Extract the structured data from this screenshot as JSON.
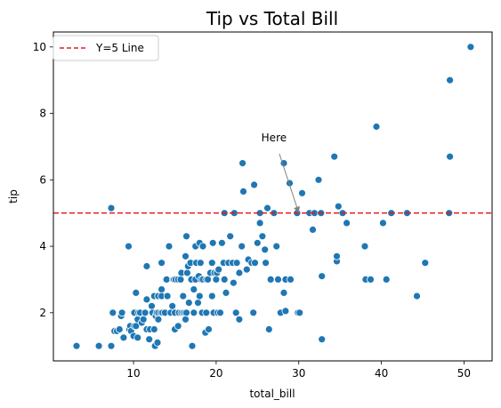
{
  "chart_data": {
    "type": "scatter",
    "title": "Tip vs Total Bill",
    "xlabel": "total_bill",
    "ylabel": "tip",
    "xlim": [
      0.3,
      53.4
    ],
    "ylim": [
      0.55,
      10.45
    ],
    "xticks": [
      "10",
      "20",
      "30",
      "40",
      "50"
    ],
    "yticks": [
      "2",
      "4",
      "6",
      "8",
      "10"
    ],
    "grid": false,
    "legend_placement": "top-left",
    "marker_color": "#1f77b4",
    "reference_line": {
      "y": 5,
      "label": "Y=5 Line",
      "color": "#e31a1c",
      "style": "dashed"
    },
    "annotation": {
      "text": "Here",
      "text_x": 27.0,
      "text_y": 7.0,
      "point_x": 30.0,
      "point_y": 5.0
    },
    "points": [
      [
        3.1,
        1.0
      ],
      [
        5.8,
        1.0
      ],
      [
        7.3,
        1.0
      ],
      [
        7.3,
        5.15
      ],
      [
        7.5,
        2.0
      ],
      [
        7.7,
        1.45
      ],
      [
        8.0,
        1.45
      ],
      [
        8.3,
        1.5
      ],
      [
        8.5,
        1.9
      ],
      [
        8.6,
        2.0
      ],
      [
        8.8,
        1.25
      ],
      [
        9.4,
        4.0
      ],
      [
        9.5,
        1.5
      ],
      [
        9.6,
        1.6
      ],
      [
        9.7,
        1.45
      ],
      [
        10.0,
        1.3
      ],
      [
        10.1,
        2.0
      ],
      [
        10.1,
        1.6
      ],
      [
        10.3,
        2.6
      ],
      [
        10.3,
        1.6
      ],
      [
        10.5,
        1.25
      ],
      [
        10.5,
        1.8
      ],
      [
        10.6,
        2.0
      ],
      [
        10.8,
        2.0
      ],
      [
        11.0,
        1.7
      ],
      [
        11.2,
        1.8
      ],
      [
        11.4,
        2.0
      ],
      [
        11.6,
        1.5
      ],
      [
        11.6,
        2.4
      ],
      [
        11.6,
        3.4
      ],
      [
        11.9,
        1.2
      ],
      [
        12.0,
        1.5
      ],
      [
        12.2,
        2.2
      ],
      [
        12.3,
        2.0
      ],
      [
        12.5,
        1.5
      ],
      [
        12.5,
        2.5
      ],
      [
        12.6,
        1.0
      ],
      [
        12.7,
        1.9
      ],
      [
        12.8,
        2.0
      ],
      [
        12.9,
        1.1
      ],
      [
        13.0,
        2.0
      ],
      [
        13.0,
        2.5
      ],
      [
        13.0,
        1.8
      ],
      [
        13.3,
        2.0
      ],
      [
        13.4,
        3.5
      ],
      [
        13.4,
        2.7
      ],
      [
        13.4,
        2.5
      ],
      [
        13.5,
        2.0
      ],
      [
        13.8,
        2.0
      ],
      [
        13.9,
        3.0
      ],
      [
        14.0,
        3.0
      ],
      [
        14.1,
        2.5
      ],
      [
        14.3,
        4.0
      ],
      [
        14.5,
        2.0
      ],
      [
        14.7,
        2.2
      ],
      [
        14.8,
        3.0
      ],
      [
        14.9,
        3.0
      ],
      [
        15.0,
        2.0
      ],
      [
        15.0,
        1.5
      ],
      [
        15.1,
        3.0
      ],
      [
        15.4,
        1.6
      ],
      [
        15.4,
        3.0
      ],
      [
        15.5,
        2.0
      ],
      [
        15.7,
        3.0
      ],
      [
        15.8,
        3.2
      ],
      [
        15.8,
        2.0
      ],
      [
        16.0,
        2.0
      ],
      [
        16.0,
        2.5
      ],
      [
        16.2,
        2.0
      ],
      [
        16.3,
        3.7
      ],
      [
        16.3,
        1.8
      ],
      [
        16.4,
        2.0
      ],
      [
        16.4,
        4.3
      ],
      [
        16.5,
        3.2
      ],
      [
        16.6,
        3.4
      ],
      [
        16.7,
        2.3
      ],
      [
        16.9,
        3.5
      ],
      [
        17.0,
        3.0
      ],
      [
        17.1,
        1.0
      ],
      [
        17.3,
        2.7
      ],
      [
        17.3,
        2.0
      ],
      [
        17.5,
        3.0
      ],
      [
        17.5,
        4.0
      ],
      [
        17.6,
        3.5
      ],
      [
        17.8,
        2.3
      ],
      [
        17.9,
        3.1
      ],
      [
        18.0,
        2.5
      ],
      [
        18.0,
        4.1
      ],
      [
        18.1,
        3.5
      ],
      [
        18.2,
        3.0
      ],
      [
        18.3,
        2.0
      ],
      [
        18.4,
        3.0
      ],
      [
        18.4,
        4.0
      ],
      [
        18.7,
        1.4
      ],
      [
        18.8,
        2.0
      ],
      [
        18.8,
        3.0
      ],
      [
        19.0,
        3.0
      ],
      [
        19.1,
        1.5
      ],
      [
        19.3,
        3.2
      ],
      [
        19.5,
        2.5
      ],
      [
        19.5,
        3.5
      ],
      [
        19.6,
        4.1
      ],
      [
        19.7,
        2.0
      ],
      [
        19.8,
        3.2
      ],
      [
        20.0,
        3.0
      ],
      [
        20.1,
        3.2
      ],
      [
        20.2,
        2.0
      ],
      [
        20.3,
        3.3
      ],
      [
        20.5,
        2.0
      ],
      [
        20.7,
        4.1
      ],
      [
        20.9,
        3.5
      ],
      [
        21.0,
        3.0
      ],
      [
        21.0,
        5.0
      ],
      [
        21.2,
        2.6
      ],
      [
        21.5,
        3.5
      ],
      [
        21.7,
        4.3
      ],
      [
        22.0,
        3.5
      ],
      [
        22.1,
        2.9
      ],
      [
        22.2,
        5.0
      ],
      [
        22.4,
        2.0
      ],
      [
        22.5,
        3.5
      ],
      [
        22.8,
        3.2
      ],
      [
        22.8,
        1.8
      ],
      [
        23.1,
        4.0
      ],
      [
        23.2,
        6.5
      ],
      [
        23.3,
        5.65
      ],
      [
        23.7,
        3.3
      ],
      [
        23.9,
        3.6
      ],
      [
        24.3,
        3.5
      ],
      [
        24.5,
        2.0
      ],
      [
        24.6,
        5.85
      ],
      [
        24.7,
        3.5
      ],
      [
        25.0,
        4.1
      ],
      [
        25.3,
        5.0
      ],
      [
        25.3,
        4.7
      ],
      [
        25.6,
        4.3
      ],
      [
        25.9,
        3.9
      ],
      [
        26.0,
        3.5
      ],
      [
        26.2,
        5.15
      ],
      [
        26.4,
        1.5
      ],
      [
        26.6,
        3.0
      ],
      [
        27.0,
        5.0
      ],
      [
        27.3,
        4.0
      ],
      [
        27.5,
        3.0
      ],
      [
        27.8,
        2.0
      ],
      [
        28.2,
        2.6
      ],
      [
        28.2,
        6.5
      ],
      [
        28.4,
        3.0
      ],
      [
        28.4,
        2.05
      ],
      [
        28.9,
        5.9
      ],
      [
        29.0,
        3.0
      ],
      [
        29.8,
        5.0
      ],
      [
        29.9,
        2.0
      ],
      [
        30.1,
        2.0
      ],
      [
        30.4,
        5.6
      ],
      [
        31.3,
        5.0
      ],
      [
        31.7,
        4.5
      ],
      [
        31.9,
        5.0
      ],
      [
        32.4,
        6.0
      ],
      [
        32.7,
        5.0
      ],
      [
        32.8,
        3.1
      ],
      [
        32.8,
        1.2
      ],
      [
        34.3,
        6.7
      ],
      [
        34.6,
        3.55
      ],
      [
        34.6,
        3.7
      ],
      [
        34.8,
        5.2
      ],
      [
        35.3,
        5.0
      ],
      [
        35.8,
        4.7
      ],
      [
        38.0,
        4.0
      ],
      [
        38.1,
        3.0
      ],
      [
        38.7,
        3.0
      ],
      [
        39.4,
        7.6
      ],
      [
        40.2,
        4.7
      ],
      [
        40.6,
        3.0
      ],
      [
        41.2,
        5.0
      ],
      [
        43.1,
        5.0
      ],
      [
        44.3,
        2.5
      ],
      [
        45.3,
        3.5
      ],
      [
        48.2,
        5.0
      ],
      [
        48.3,
        6.7
      ],
      [
        48.3,
        9.0
      ],
      [
        50.8,
        10.0
      ]
    ]
  }
}
